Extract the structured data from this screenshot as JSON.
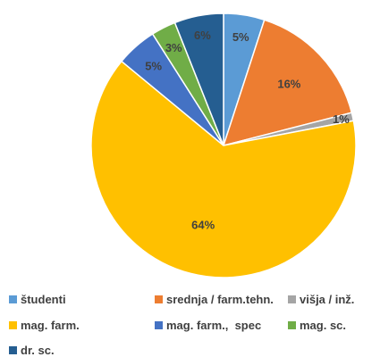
{
  "chart_data": {
    "type": "pie",
    "categories": [
      "študenti",
      "srednja / farm.tehn.",
      "višja / inž.",
      "mag. farm.",
      "mag. farm.,  spec",
      "mag. sc.",
      "dr. sc."
    ],
    "values": [
      5,
      16,
      1,
      64,
      5,
      3,
      6
    ],
    "value_labels": [
      "5%",
      "16%",
      "1%",
      "64%",
      "5%",
      "3%",
      "6%"
    ],
    "colors": [
      "#5B9BD5",
      "#ED7D31",
      "#A5A5A5",
      "#FFC000",
      "#4472C4",
      "#70AD47",
      "#255E91"
    ],
    "legend_position": "bottom",
    "title": ""
  }
}
